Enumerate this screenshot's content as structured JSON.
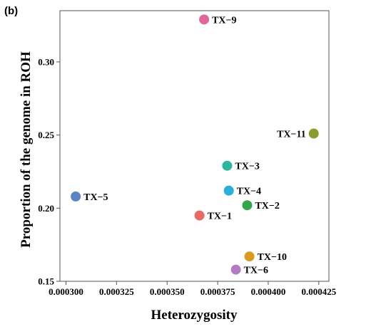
{
  "panel_label": "(b)",
  "chart_data": {
    "type": "scatter",
    "xlabel": "Heterozygosity",
    "ylabel": "Proportion of the genome in ROH",
    "xlim": [
      0.000297,
      0.00043
    ],
    "ylim": [
      0.15,
      0.335
    ],
    "xticks": [
      0.0003,
      0.000325,
      0.00035,
      0.000375,
      0.0004,
      0.000425
    ],
    "xtick_labels": [
      "0.000300",
      "0.000325",
      "0.000350",
      "0.000375",
      "0.000400",
      "0.000425"
    ],
    "yticks": [
      0.15,
      0.2,
      0.25,
      0.3
    ],
    "ytick_labels": [
      "0.15",
      "0.20",
      "0.25",
      "0.30"
    ],
    "grid": false,
    "points": [
      {
        "label": "TX−9",
        "x": 0.0003683,
        "y": 0.329,
        "color": "#e0669b"
      },
      {
        "label": "TX−11",
        "x": 0.0004225,
        "y": 0.251,
        "color": "#8a9b2f"
      },
      {
        "label": "TX−3",
        "x": 0.0003797,
        "y": 0.229,
        "color": "#2db59e"
      },
      {
        "label": "TX−4",
        "x": 0.0003805,
        "y": 0.212,
        "color": "#2aaedb"
      },
      {
        "label": "TX−2",
        "x": 0.0003896,
        "y": 0.202,
        "color": "#34a64a"
      },
      {
        "label": "TX−5",
        "x": 0.0003048,
        "y": 0.208,
        "color": "#5b84c4"
      },
      {
        "label": "TX−1",
        "x": 0.000366,
        "y": 0.195,
        "color": "#e86a64"
      },
      {
        "label": "TX−10",
        "x": 0.0003907,
        "y": 0.167,
        "color": "#d99a20"
      },
      {
        "label": "TX−6",
        "x": 0.000384,
        "y": 0.158,
        "color": "#b47cc0"
      }
    ]
  }
}
